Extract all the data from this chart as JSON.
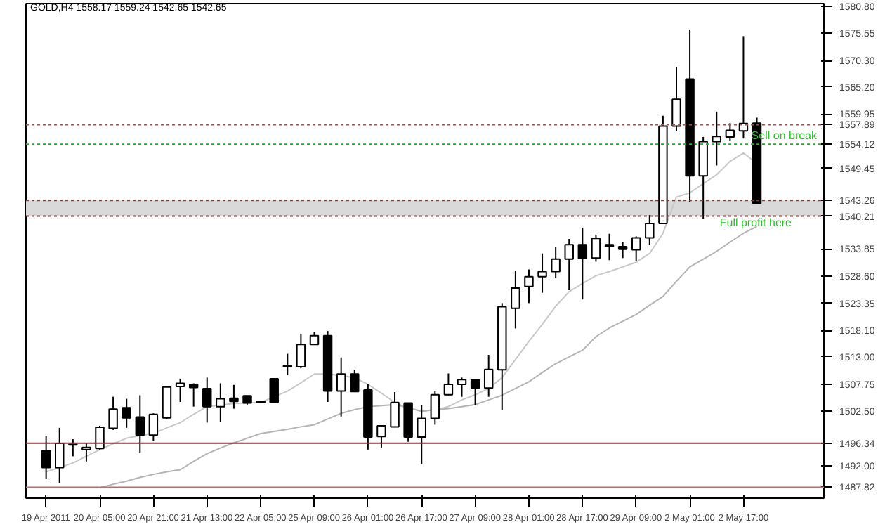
{
  "chart_data": {
    "type": "candlestick",
    "title": "GOLD,H4  1558.17 1559.24 1542.65 1542.65",
    "categories": [
      "19 Apr 2011",
      null,
      null,
      null,
      "20 Apr 05:00",
      null,
      null,
      null,
      "20 Apr 21:00",
      null,
      null,
      null,
      "21 Apr 13:00",
      null,
      null,
      null,
      "22 Apr 05:00",
      null,
      null,
      null,
      "25 Apr 09:00",
      null,
      null,
      null,
      "26 Apr 01:00",
      null,
      null,
      null,
      "26 Apr 17:00",
      null,
      null,
      null,
      "27 Apr 09:00",
      null,
      null,
      null,
      "28 Apr 01:00",
      null,
      null,
      null,
      "28 Apr 17:00",
      null,
      null,
      null,
      "29 Apr 09:00",
      null,
      null,
      null,
      "2 May 01:00",
      null,
      null,
      null,
      "2 May 17:00",
      null
    ],
    "ohlc": [
      [
        1494.9,
        1497.7,
        1489.5,
        1491.6
      ],
      [
        1491.6,
        1499.3,
        1488.6,
        1496.3
      ],
      [
        1496.0,
        1497.1,
        1493.8,
        1496.1
      ],
      [
        1495.1,
        1496.4,
        1492.8,
        1495.5
      ],
      [
        1495.3,
        1499.7,
        1495.1,
        1499.4
      ],
      [
        1499.2,
        1505.3,
        1498.9,
        1502.9
      ],
      [
        1503.2,
        1504.9,
        1499.3,
        1501.2
      ],
      [
        1501.4,
        1505.6,
        1494.5,
        1497.9
      ],
      [
        1497.9,
        1502.1,
        1496.7,
        1501.9
      ],
      [
        1501.2,
        1507.3,
        1501.0,
        1507.2
      ],
      [
        1507.3,
        1508.8,
        1504.3,
        1507.9
      ],
      [
        1507.7,
        1507.9,
        1503.4,
        1507.1
      ],
      [
        1506.9,
        1509.0,
        1500.3,
        1503.4
      ],
      [
        1503.4,
        1507.9,
        1500.5,
        1504.9
      ],
      [
        1505.0,
        1507.6,
        1503.0,
        1504.4
      ],
      [
        1505.5,
        1505.5,
        1503.8,
        1504.1
      ],
      [
        1504.4,
        1504.4,
        1504.2,
        1504.2
      ],
      [
        1508.8,
        1508.8,
        1504.2,
        1504.2
      ],
      [
        1511.2,
        1513.6,
        1509.5,
        1511.3
      ],
      [
        1511.1,
        1517.5,
        1510.8,
        1515.4
      ],
      [
        1515.4,
        1517.8,
        1515.4,
        1517.1
      ],
      [
        1517.1,
        1518.0,
        1504.3,
        1506.4
      ],
      [
        1506.4,
        1512.9,
        1501.5,
        1509.7
      ],
      [
        1509.7,
        1510.5,
        1506.3,
        1506.3
      ],
      [
        1506.6,
        1507.7,
        1495.1,
        1497.5
      ],
      [
        1497.6,
        1499.7,
        1495.5,
        1499.7
      ],
      [
        1499.5,
        1506.2,
        1499.4,
        1504.2
      ],
      [
        1504.1,
        1504.1,
        1496.6,
        1497.5
      ],
      [
        1497.5,
        1503.7,
        1492.3,
        1501.1
      ],
      [
        1501.1,
        1506.4,
        1499.9,
        1505.7
      ],
      [
        1505.7,
        1509.8,
        1505.6,
        1507.7
      ],
      [
        1507.7,
        1509.0,
        1505.3,
        1508.6
      ],
      [
        1508.6,
        1508.6,
        1503.7,
        1507.0
      ],
      [
        1507.0,
        1513.4,
        1505.3,
        1510.6
      ],
      [
        1510.5,
        1523.4,
        1502.7,
        1522.7
      ],
      [
        1522.4,
        1529.7,
        1518.5,
        1526.3
      ],
      [
        1526.6,
        1529.9,
        1523.4,
        1528.5
      ],
      [
        1528.5,
        1533.0,
        1525.4,
        1529.5
      ],
      [
        1529.5,
        1534.2,
        1528.2,
        1531.9
      ],
      [
        1531.9,
        1535.8,
        1525.9,
        1534.7
      ],
      [
        1534.7,
        1538.0,
        1524.1,
        1532.0
      ],
      [
        1532.1,
        1536.6,
        1531.4,
        1535.9
      ],
      [
        1534.7,
        1536.8,
        1531.7,
        1534.3
      ],
      [
        1534.3,
        1535.2,
        1532.1,
        1533.8
      ],
      [
        1533.7,
        1536.3,
        1531.5,
        1536.0
      ],
      [
        1536.0,
        1540.4,
        1534.7,
        1538.8
      ],
      [
        1538.8,
        1559.6,
        1538.7,
        1557.6
      ],
      [
        1557.6,
        1569.0,
        1556.7,
        1562.8
      ],
      [
        1566.7,
        1576.3,
        1543.0,
        1548.0
      ],
      [
        1548.0,
        1555.5,
        1539.7,
        1554.6
      ],
      [
        1554.6,
        1560.4,
        1550.0,
        1555.6
      ],
      [
        1555.5,
        1558.2,
        1554.8,
        1556.8
      ],
      [
        1556.7,
        1575.0,
        1555.2,
        1558.1
      ],
      [
        1558.17,
        1559.24,
        1542.65,
        1542.65
      ]
    ],
    "series": [
      {
        "type": "line",
        "color": "#c8c8c8",
        "values": [
          1490.8,
          1491.6,
          1492.5,
          1493.8,
          1495.1,
          1496.2,
          1497.3,
          1497.8,
          1498.2,
          1499.3,
          1500.3,
          1501.9,
          1503.4,
          1503.7,
          1504.0,
          1504.1,
          1504.2,
          1505.3,
          1506.4,
          1508.0,
          1509.7,
          1509.7,
          1509.4,
          1509.0,
          1507.7,
          1506.0,
          1504.2,
          1503.1,
          1502.5,
          1502.8,
          1503.4,
          1504.7,
          1505.7,
          1506.9,
          1509.0,
          1512.5,
          1516.0,
          1519.3,
          1522.8,
          1525.6,
          1527.2,
          1528.7,
          1529.5,
          1530.4,
          1531.3,
          1533.0,
          1536.9,
          1543.9,
          1544.7,
          1546.5,
          1548.2,
          1550.8,
          1552.4,
          1550.4
        ]
      },
      {
        "type": "line",
        "color": "#b4b4b4",
        "values": [
          null,
          null,
          null,
          null,
          1487.7,
          1488.4,
          1489.0,
          1489.7,
          1490.3,
          1490.8,
          1491.2,
          1492.8,
          1494.3,
          1495.4,
          1496.4,
          1497.3,
          1498.2,
          1498.6,
          1499.0,
          1499.5,
          1499.9,
          1501.0,
          1502.1,
          1502.8,
          1503.4,
          1503.6,
          1503.8,
          1503.2,
          1502.5,
          1502.8,
          1503.0,
          1503.4,
          1503.8,
          1504.7,
          1505.6,
          1506.9,
          1508.2,
          1510.0,
          1511.7,
          1513.0,
          1514.3,
          1516.9,
          1518.6,
          1519.9,
          1521.2,
          1523.0,
          1524.7,
          1527.6,
          1530.4,
          1531.9,
          1533.4,
          1535.2,
          1536.9,
          1538.2
        ]
      }
    ],
    "ylim": [
      1485.7,
      1581.3
    ],
    "yticks": [
      {
        "value": 1580.8,
        "label": "1580.80"
      },
      1575.55,
      {
        "value": 1570.3,
        "label": "1570.30"
      },
      {
        "value": 1565.2,
        "label": "1565.20"
      },
      1559.95,
      1549.45,
      1533.85,
      {
        "value": 1528.6,
        "label": "1528.60"
      },
      1523.35,
      {
        "value": 1518.1,
        "label": "1518.10"
      },
      {
        "value": 1513,
        "label": "1513.00"
      },
      1507.75,
      {
        "value": 1502.5,
        "label": "1502.50"
      },
      {
        "value": 1492,
        "label": "1492.00"
      }
    ],
    "ref_lines": [
      {
        "axis": "y",
        "value": 1557.89,
        "label": "1557.89",
        "color": "#a0524d",
        "line_style": "dotted"
      },
      {
        "axis": "y",
        "value": 1554.12,
        "label": "1554.12",
        "color": "#2fa82f",
        "line_style": "dotted"
      },
      {
        "axis": "y",
        "value": 1543.26,
        "label": "1543.26",
        "color": "#8b3a3a",
        "line_style": "dotted"
      },
      {
        "axis": "y",
        "value": 1540.21,
        "label": "1540.21",
        "color": "#8b3a3a",
        "line_style": "dotted"
      },
      {
        "axis": "y",
        "value": 1496.34,
        "label": "1496.34",
        "color": "#7a3a3a",
        "line_style": "solid"
      },
      {
        "axis": "y",
        "value": 1487.82,
        "label": "1487.82",
        "color": "#b07070",
        "line_style": "solid"
      }
    ],
    "bands": [
      {
        "axis": "y",
        "from": 1540.21,
        "to": 1543.26,
        "color": "#d9d9d9"
      }
    ],
    "annotations": [
      "Sell on break",
      "Full profit here"
    ],
    "grid": false
  }
}
